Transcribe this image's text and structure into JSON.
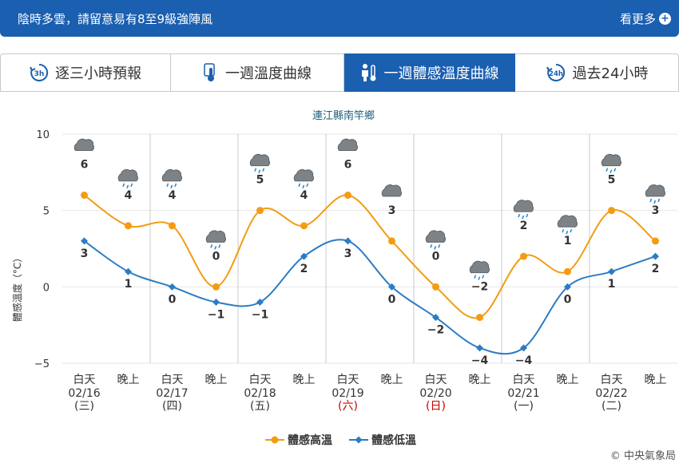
{
  "banner": {
    "text": "陰時多雲，請留意易有8至9級強陣風",
    "more_label": "看更多",
    "more_icon": "plus-circle-icon"
  },
  "tabs": [
    {
      "label": "逐三小時預報",
      "icon": "3h-clock-icon",
      "active": false
    },
    {
      "label": "一週溫度曲線",
      "icon": "thermometer-icon",
      "active": false
    },
    {
      "label": "一週體感溫度曲線",
      "icon": "body-thermometer-icon",
      "active": true
    },
    {
      "label": "過去24小時",
      "icon": "24h-clock-icon",
      "active": false
    }
  ],
  "colors": {
    "accent": "#1a5fb0",
    "high": "#f39c12",
    "low": "#2b7cc4",
    "red": "#cc0000"
  },
  "credit": "© 中央氣象局",
  "chart_data": {
    "type": "line",
    "title": "連江縣南竿鄉",
    "ylabel": "體感溫度（°C）",
    "ylim": [
      -5,
      10
    ],
    "yticks": [
      10,
      5,
      0,
      -5
    ],
    "x_period": [
      "白天",
      "晚上",
      "白天",
      "晚上",
      "白天",
      "晚上",
      "白天",
      "晚上",
      "白天",
      "晚上",
      "白天",
      "晚上",
      "白天",
      "晚上"
    ],
    "days": [
      {
        "date": "02/16",
        "weekday": "(三)",
        "holiday": false
      },
      {
        "date": "02/17",
        "weekday": "(四)",
        "holiday": false
      },
      {
        "date": "02/18",
        "weekday": "(五)",
        "holiday": false
      },
      {
        "date": "02/19",
        "weekday": "(六)",
        "holiday": true
      },
      {
        "date": "02/20",
        "weekday": "(日)",
        "holiday": true
      },
      {
        "date": "02/21",
        "weekday": "(一)",
        "holiday": false
      },
      {
        "date": "02/22",
        "weekday": "(二)",
        "holiday": false
      }
    ],
    "weather_icons": [
      "cloudy",
      "cloudy-rain",
      "cloudy-rain",
      "cloudy-rain",
      "cloudy-rain",
      "partly-cloudy-rain",
      "cloudy",
      "cloudy",
      "cloudy-rain",
      "cloudy-rain",
      "cloudy-rain",
      "cloudy-rain",
      "cloudy-rain",
      "cloudy-rain"
    ],
    "series": [
      {
        "name": "體感高溫",
        "color": "#f39c12",
        "marker": "circle",
        "values": [
          6,
          4,
          4,
          0,
          5,
          4,
          6,
          3,
          0,
          -2,
          2,
          1,
          5,
          3
        ]
      },
      {
        "name": "體感低溫",
        "color": "#2b7cc4",
        "marker": "diamond",
        "values": [
          3,
          1,
          0,
          -1,
          -1,
          2,
          3,
          0,
          -2,
          -4,
          -4,
          0,
          1,
          2
        ]
      }
    ],
    "legend_position": "bottom-center"
  }
}
